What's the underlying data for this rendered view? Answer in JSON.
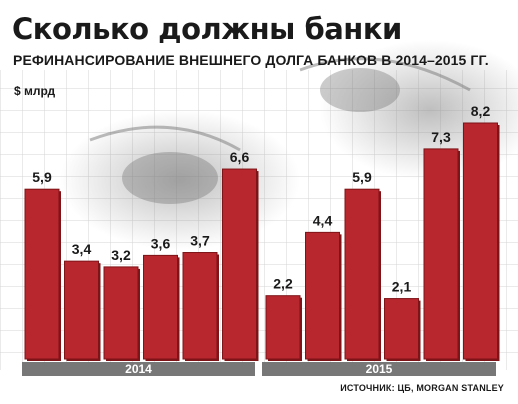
{
  "header": {
    "title": "Сколько должны банки",
    "subtitle": "РЕФИНАНСИРОВАНИЕ ВНЕШНЕГО ДОЛГА БАНКОВ В 2014–2015 ГГ.",
    "unit": "$ млрд"
  },
  "footer": {
    "source": "ИСТОЧНИК: ЦБ, MORGAN STANLEY"
  },
  "colors": {
    "bar": "#b8262e",
    "bar_dark": "#7e1418",
    "band": "#777777",
    "background_grid": "#c9c9c9"
  },
  "chart_data": {
    "type": "bar",
    "title": "Сколько должны банки",
    "subtitle": "РЕФИНАНСИРОВАНИЕ ВНЕШНЕГО ДОЛГА БАНКОВ В 2014–2015 ГГ.",
    "ylabel": "$ млрд",
    "ylim": [
      0,
      8.2
    ],
    "groups": [
      {
        "label": "2014",
        "values": [
          5.9,
          3.4,
          3.2,
          3.6,
          3.7,
          6.6
        ],
        "value_labels": [
          "5,9",
          "3,4",
          "3,2",
          "3,6",
          "3,7",
          "6,6"
        ]
      },
      {
        "label": "2015",
        "values": [
          2.2,
          4.4,
          5.9,
          2.1,
          7.3,
          8.2
        ],
        "value_labels": [
          "2,2",
          "4,4",
          "5,9",
          "2,1",
          "7,3",
          "8,2"
        ]
      }
    ],
    "grid": true
  }
}
